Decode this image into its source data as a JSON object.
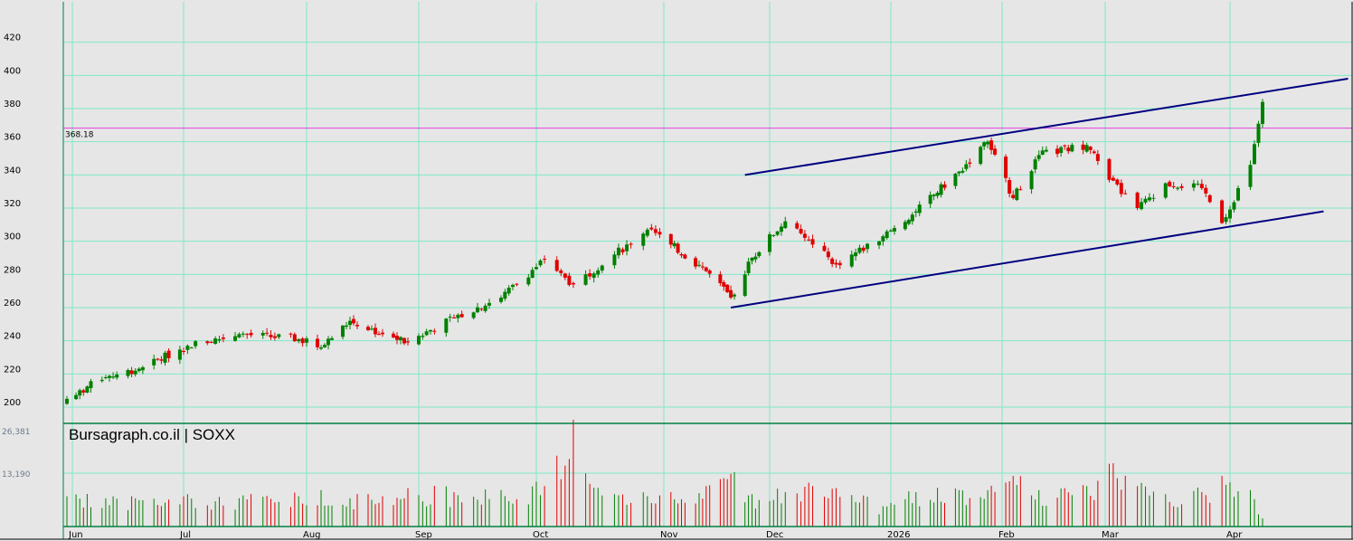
{
  "chart_data": {
    "type": "candlestick",
    "title": "Bursagraph.co.il | SOXX",
    "y_ticks": [
      200,
      220,
      240,
      260,
      280,
      300,
      320,
      340,
      360,
      380,
      400,
      420
    ],
    "ylim": [
      188,
      448
    ],
    "x_ticks": [
      "Jun",
      "Jul",
      "Aug",
      "Sep",
      "Oct",
      "Nov",
      "Dec",
      "2026",
      "Feb",
      "Mar",
      "Apr"
    ],
    "reference_line": {
      "value": 368.18,
      "label": "368.18",
      "color": "#e040e0"
    },
    "volume_ticks": [
      {
        "value": 26381,
        "label": "26,381"
      },
      {
        "value": 13190,
        "label": "13,190"
      }
    ],
    "grid": true,
    "colors": {
      "up": "#008000",
      "down": "#e00000",
      "grid": "#7fe8c8",
      "trend": "#000080",
      "background": "#e6e6e6"
    },
    "trendlines": [
      {
        "name": "upper",
        "start": {
          "date": "2025-11-24",
          "value": 340
        },
        "end": {
          "date": "2026-04-30",
          "value": 398
        }
      },
      {
        "name": "lower",
        "start": {
          "date": "2025-11-20",
          "value": 260
        },
        "end": {
          "date": "2026-04-24",
          "value": 318
        }
      }
    ],
    "anchors": [
      {
        "date": "2025-05-30",
        "close": 205,
        "volume": 7500
      },
      {
        "date": "2025-06-10",
        "close": 218,
        "volume": 7000
      },
      {
        "date": "2025-06-20",
        "close": 224,
        "volume": 6500
      },
      {
        "date": "2025-07-02",
        "close": 237,
        "volume": 8000
      },
      {
        "date": "2025-07-15",
        "close": 244,
        "volume": 7000
      },
      {
        "date": "2025-07-30",
        "close": 241,
        "volume": 7500
      },
      {
        "date": "2025-08-05",
        "close": 236,
        "volume": 9000
      },
      {
        "date": "2025-08-13",
        "close": 252,
        "volume": 7000
      },
      {
        "date": "2025-08-22",
        "close": 244,
        "volume": 7500
      },
      {
        "date": "2025-08-29",
        "close": 239,
        "volume": 9500
      },
      {
        "date": "2025-09-10",
        "close": 254,
        "volume": 8500
      },
      {
        "date": "2025-09-22",
        "close": 266,
        "volume": 9000
      },
      {
        "date": "2025-10-03",
        "close": 289,
        "volume": 10000
      },
      {
        "date": "2025-10-10",
        "close": 274,
        "volume": 26381
      },
      {
        "date": "2025-10-20",
        "close": 292,
        "volume": 8000
      },
      {
        "date": "2025-10-28",
        "close": 307,
        "volume": 7500
      },
      {
        "date": "2025-11-03",
        "close": 298,
        "volume": 8500
      },
      {
        "date": "2025-11-13",
        "close": 282,
        "volume": 10000
      },
      {
        "date": "2025-11-20",
        "close": 266,
        "volume": 13000
      },
      {
        "date": "2025-11-26",
        "close": 290,
        "volume": 8000
      },
      {
        "date": "2025-12-05",
        "close": 312,
        "volume": 8500
      },
      {
        "date": "2025-12-12",
        "close": 298,
        "volume": 10000
      },
      {
        "date": "2025-12-18",
        "close": 286,
        "volume": 9500
      },
      {
        "date": "2025-12-30",
        "close": 303,
        "volume": 5000
      },
      {
        "date": "2026-01-08",
        "close": 318,
        "volume": 8500
      },
      {
        "date": "2026-01-20",
        "close": 342,
        "volume": 9000
      },
      {
        "date": "2026-01-28",
        "close": 360,
        "volume": 9000
      },
      {
        "date": "2026-02-04",
        "close": 326,
        "volume": 12500
      },
      {
        "date": "2026-02-11",
        "close": 352,
        "volume": 9000
      },
      {
        "date": "2026-02-24",
        "close": 358,
        "volume": 10000
      },
      {
        "date": "2026-03-02",
        "close": 337,
        "volume": 15500
      },
      {
        "date": "2026-03-09",
        "close": 320,
        "volume": 10000
      },
      {
        "date": "2026-03-16",
        "close": 335,
        "volume": 8000
      },
      {
        "date": "2026-03-25",
        "close": 332,
        "volume": 8500
      },
      {
        "date": "2026-03-30",
        "close": 311,
        "volume": 12500
      },
      {
        "date": "2026-04-06",
        "close": 346,
        "volume": 9000
      },
      {
        "date": "2026-04-09",
        "close": 384,
        "volume": 2000
      }
    ]
  }
}
